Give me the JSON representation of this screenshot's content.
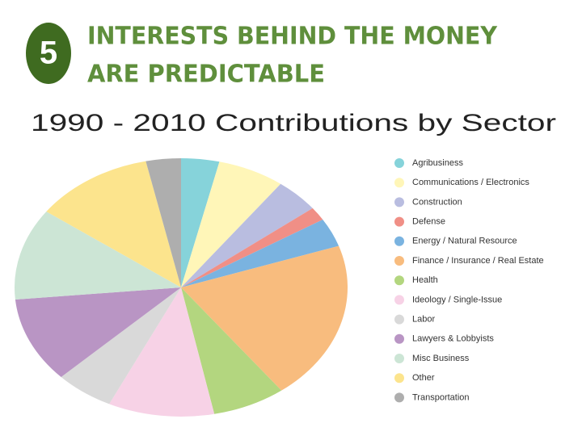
{
  "header": {
    "badge": "5",
    "title_lines": [
      "INTERESTS BEHIND THE MONEY",
      "ARE PREDICTABLE"
    ]
  },
  "chart_data": {
    "type": "pie",
    "title": "1990 - 2010 Contributions by Sector",
    "categories": [
      "Agribusiness",
      "Communications / Electronics",
      "Construction",
      "Defense",
      "Energy / Natural Resource",
      "Finance / Insurance / Real Estate",
      "Health",
      "Ideology / Single-Issue",
      "Labor",
      "Lawyers & Lobbyists",
      "Misc Business",
      "Other",
      "Transportation"
    ],
    "values": [
      3.7,
      6.5,
      4.3,
      1.7,
      3.6,
      19.9,
      7.1,
      10.3,
      5.7,
      10.7,
      11.5,
      11.6,
      3.4
    ],
    "colors": [
      "#86d3da",
      "#fff6b8",
      "#b9bde0",
      "#f08f86",
      "#7ab3e0",
      "#f8bc7e",
      "#b3d67f",
      "#f7d2e6",
      "#d9d9d9",
      "#b995c4",
      "#cce5d5",
      "#fce48d",
      "#aeaeae"
    ],
    "legend": "right"
  }
}
